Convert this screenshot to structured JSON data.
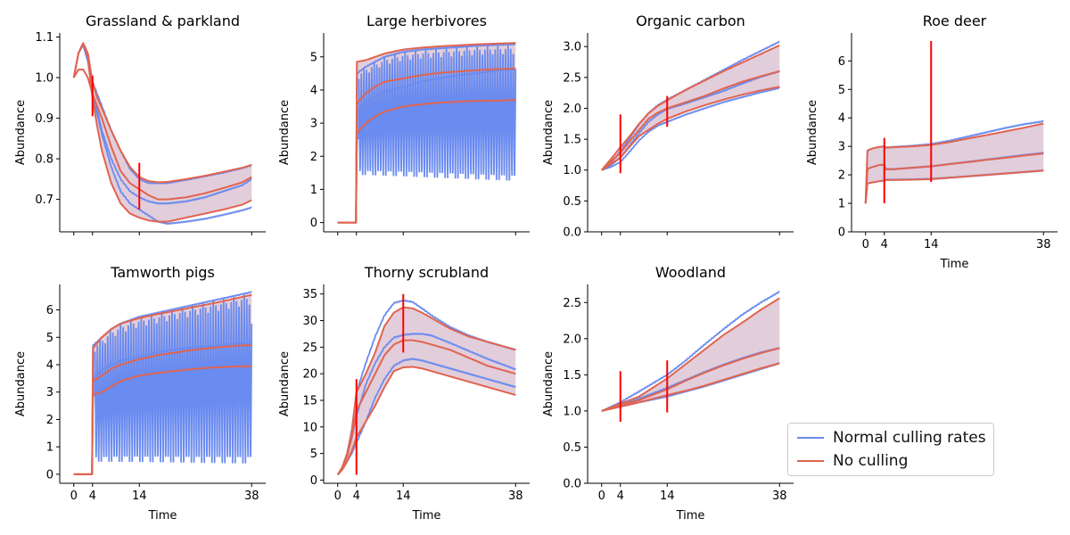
{
  "colors": {
    "normal": "#6a8bef",
    "noculling": "#e06450",
    "band": "#ddc4d3",
    "marker": "#ff0000"
  },
  "legend": {
    "normal_label": "Normal culling rates",
    "noculling_label": "No culling"
  },
  "chart_data": [
    {
      "type": "line",
      "title": "Grassland & parkland",
      "xlabel": "",
      "ylabel": "Abundance",
      "xlim": [
        -3,
        41
      ],
      "ylim": [
        0.62,
        1.11
      ],
      "yticks": [
        0.7,
        0.8,
        0.9,
        1.0,
        1.1
      ],
      "ytick_decimals": 1,
      "xticks": [
        0,
        4,
        14,
        38
      ],
      "show_xtick_labels": false,
      "markers": [
        {
          "x": 4,
          "y0": 0.905,
          "y1": 1.005
        },
        {
          "x": 14,
          "y0": 0.675,
          "y1": 0.79
        }
      ],
      "x": [
        0,
        1,
        2,
        3,
        4,
        5,
        6,
        8,
        10,
        12,
        14,
        16,
        18,
        20,
        24,
        28,
        32,
        36,
        38
      ],
      "no_culling": {
        "upper": [
          1.0,
          1.06,
          1.085,
          1.06,
          0.99,
          0.95,
          0.925,
          0.87,
          0.82,
          0.78,
          0.755,
          0.745,
          0.742,
          0.743,
          0.75,
          0.758,
          0.768,
          0.778,
          0.785
        ],
        "median": [
          1.0,
          1.02,
          1.02,
          1.0,
          0.96,
          0.93,
          0.9,
          0.83,
          0.77,
          0.74,
          0.725,
          0.71,
          0.7,
          0.7,
          0.705,
          0.715,
          0.728,
          0.742,
          0.755
        ],
        "lower": [
          1.0,
          1.06,
          1.085,
          1.05,
          0.95,
          0.88,
          0.82,
          0.74,
          0.69,
          0.665,
          0.655,
          0.648,
          0.645,
          0.645,
          0.655,
          0.665,
          0.675,
          0.687,
          0.698
        ]
      },
      "normal": {
        "upper": [
          1.0,
          1.06,
          1.085,
          1.06,
          0.99,
          0.96,
          0.93,
          0.87,
          0.82,
          0.775,
          0.75,
          0.74,
          0.74,
          0.74,
          0.748,
          0.757,
          0.766,
          0.777,
          0.784
        ],
        "median": [
          1.0,
          1.06,
          1.08,
          1.04,
          0.96,
          0.92,
          0.87,
          0.8,
          0.75,
          0.72,
          0.705,
          0.695,
          0.69,
          0.69,
          0.695,
          0.705,
          0.72,
          0.735,
          0.75
        ],
        "lower": [
          1.0,
          1.06,
          1.085,
          1.05,
          0.95,
          0.91,
          0.86,
          0.78,
          0.72,
          0.69,
          0.675,
          0.66,
          0.645,
          0.64,
          0.645,
          0.652,
          0.662,
          0.673,
          0.68
        ]
      }
    },
    {
      "type": "line",
      "title": "Large herbivores",
      "xlabel": "",
      "ylabel": "Abundance",
      "xlim": [
        -3,
        41
      ],
      "ylim": [
        -0.28,
        5.72
      ],
      "yticks": [
        0,
        1,
        2,
        3,
        4,
        5
      ],
      "ytick_decimals": 0,
      "xticks": [
        0,
        4,
        14,
        38
      ],
      "show_xtick_labels": false,
      "markers": [],
      "x": [
        0,
        3.9,
        4.1,
        6,
        8,
        10,
        14,
        18,
        22,
        26,
        30,
        34,
        38
      ],
      "no_culling": {
        "upper": [
          0,
          0,
          4.85,
          4.9,
          5.0,
          5.1,
          5.22,
          5.28,
          5.32,
          5.35,
          5.38,
          5.4,
          5.42
        ],
        "median": [
          0,
          0,
          3.6,
          3.9,
          4.1,
          4.25,
          4.35,
          4.45,
          4.52,
          4.56,
          4.6,
          4.63,
          4.65
        ],
        "lower": [
          0,
          0,
          2.7,
          3.0,
          3.2,
          3.35,
          3.5,
          3.57,
          3.62,
          3.65,
          3.67,
          3.68,
          3.7
        ]
      },
      "normal": {
        "upper": [
          0,
          0,
          4.5,
          4.7,
          4.85,
          5.0,
          5.15,
          5.22,
          5.26,
          5.3,
          5.34,
          5.36,
          5.38
        ],
        "median": [
          0,
          0,
          3.3,
          3.6,
          3.8,
          3.95,
          4.1,
          4.25,
          4.35,
          4.45,
          4.52,
          4.58,
          4.62
        ],
        "lower": [
          0,
          0,
          2.5,
          2.8,
          3.0,
          3.2,
          3.4,
          3.52,
          3.58,
          3.62,
          3.64,
          3.66,
          3.68
        ]
      },
      "normal_oscillation": {
        "x_start": 4.5,
        "x_end": 38,
        "period": 0.55,
        "low": 1.4,
        "low_end": 1.2
      }
    },
    {
      "type": "line",
      "title": "Organic carbon",
      "xlabel": "",
      "ylabel": "Abundance",
      "xlim": [
        -3,
        41
      ],
      "ylim": [
        0,
        3.22
      ],
      "yticks": [
        0,
        0.5,
        1.0,
        1.5,
        2.0,
        2.5,
        3.0
      ],
      "ytick_decimals": 1,
      "xticks": [
        0,
        4,
        14,
        38
      ],
      "show_xtick_labels": false,
      "markers": [
        {
          "x": 4,
          "y0": 0.95,
          "y1": 1.9
        },
        {
          "x": 14,
          "y0": 1.7,
          "y1": 2.2
        }
      ],
      "x": [
        0,
        2,
        4,
        6,
        8,
        10,
        12,
        14,
        18,
        22,
        26,
        30,
        34,
        38
      ],
      "no_culling": {
        "upper": [
          1.0,
          1.18,
          1.37,
          1.55,
          1.75,
          1.92,
          2.04,
          2.13,
          2.3,
          2.45,
          2.6,
          2.74,
          2.88,
          3.02
        ],
        "median": [
          1.0,
          1.14,
          1.28,
          1.47,
          1.65,
          1.83,
          1.93,
          2.0,
          2.1,
          2.2,
          2.32,
          2.43,
          2.52,
          2.6
        ],
        "lower": [
          1.0,
          1.1,
          1.2,
          1.38,
          1.55,
          1.65,
          1.75,
          1.83,
          1.95,
          2.05,
          2.14,
          2.22,
          2.29,
          2.35
        ]
      },
      "normal": {
        "upper": [
          1.0,
          1.12,
          1.3,
          1.52,
          1.74,
          1.92,
          2.05,
          2.14,
          2.3,
          2.46,
          2.62,
          2.78,
          2.93,
          3.08
        ],
        "median": [
          1.0,
          1.08,
          1.2,
          1.4,
          1.6,
          1.78,
          1.9,
          1.99,
          2.08,
          2.18,
          2.28,
          2.4,
          2.51,
          2.6
        ],
        "lower": [
          1.0,
          1.05,
          1.13,
          1.3,
          1.48,
          1.62,
          1.72,
          1.78,
          1.9,
          2.0,
          2.1,
          2.18,
          2.26,
          2.33
        ]
      }
    },
    {
      "type": "line",
      "title": "Roe deer",
      "xlabel": "Time",
      "ylabel": "Abundance",
      "xlim": [
        -3,
        41
      ],
      "ylim": [
        0,
        6.98
      ],
      "yticks": [
        0,
        1,
        2,
        3,
        4,
        5,
        6
      ],
      "ytick_decimals": 0,
      "xticks": [
        0,
        4,
        14,
        38
      ],
      "show_xtick_labels": true,
      "markers": [
        {
          "x": 4,
          "y0": 1.0,
          "y1": 3.3
        },
        {
          "x": 14,
          "y0": 1.75,
          "y1": 6.7
        }
      ],
      "x": [
        0,
        0.4,
        1,
        2,
        3,
        4,
        4.3,
        6,
        10,
        14,
        18,
        22,
        26,
        30,
        34,
        38
      ],
      "no_culling": {
        "upper": [
          1.0,
          2.85,
          2.9,
          2.95,
          2.98,
          3.0,
          2.95,
          2.97,
          3.0,
          3.05,
          3.15,
          3.28,
          3.4,
          3.53,
          3.66,
          3.8
        ],
        "median": [
          1.0,
          2.2,
          2.25,
          2.3,
          2.35,
          2.35,
          2.2,
          2.2,
          2.25,
          2.3,
          2.38,
          2.45,
          2.53,
          2.6,
          2.68,
          2.75
        ],
        "lower": [
          1.0,
          1.7,
          1.72,
          1.75,
          1.78,
          1.8,
          1.82,
          1.82,
          1.83,
          1.85,
          1.9,
          1.95,
          2.0,
          2.05,
          2.1,
          2.15
        ]
      },
      "normal": {
        "upper": [
          1.0,
          2.85,
          2.9,
          2.95,
          2.98,
          3.0,
          2.96,
          2.98,
          3.02,
          3.08,
          3.2,
          3.35,
          3.5,
          3.65,
          3.78,
          3.88
        ],
        "median": [
          1.0,
          2.2,
          2.25,
          2.3,
          2.35,
          2.35,
          2.2,
          2.2,
          2.25,
          2.3,
          2.38,
          2.46,
          2.54,
          2.62,
          2.7,
          2.77
        ],
        "lower": [
          1.0,
          1.7,
          1.72,
          1.75,
          1.78,
          1.8,
          1.83,
          1.83,
          1.84,
          1.86,
          1.9,
          1.95,
          2.0,
          2.05,
          2.1,
          2.15
        ]
      }
    },
    {
      "type": "line",
      "title": "Tamworth pigs",
      "xlabel": "Time",
      "ylabel": "Abundance",
      "xlim": [
        -3,
        41
      ],
      "ylim": [
        -0.33,
        6.93
      ],
      "yticks": [
        0,
        1,
        2,
        3,
        4,
        5,
        6
      ],
      "ytick_decimals": 0,
      "xticks": [
        0,
        4,
        14,
        38
      ],
      "show_xtick_labels": true,
      "markers": [],
      "x": [
        0,
        3.9,
        4.1,
        6,
        8,
        10,
        14,
        18,
        22,
        26,
        30,
        34,
        38
      ],
      "no_culling": {
        "upper": [
          0,
          0,
          4.6,
          5.0,
          5.3,
          5.5,
          5.7,
          5.85,
          5.98,
          6.12,
          6.25,
          6.4,
          6.55
        ],
        "median": [
          0,
          0,
          3.4,
          3.6,
          3.85,
          4.0,
          4.2,
          4.35,
          4.45,
          4.55,
          4.62,
          4.68,
          4.72
        ],
        "lower": [
          0,
          0,
          2.9,
          3.0,
          3.2,
          3.4,
          3.6,
          3.7,
          3.78,
          3.85,
          3.9,
          3.93,
          3.95
        ]
      },
      "normal": {
        "upper": [
          0,
          0,
          4.7,
          5.0,
          5.3,
          5.5,
          5.75,
          5.9,
          6.05,
          6.2,
          6.35,
          6.5,
          6.65
        ],
        "median": [
          0,
          0,
          3.5,
          3.8,
          4.0,
          4.15,
          4.3,
          4.45,
          4.55,
          4.65,
          4.7,
          4.75,
          4.8
        ],
        "lower": [
          0,
          0,
          2.85,
          3.0,
          3.2,
          3.35,
          3.55,
          3.65,
          3.75,
          3.82,
          3.88,
          3.92,
          3.95
        ]
      },
      "normal_oscillation": {
        "x_start": 4.5,
        "x_end": 38,
        "period": 0.55,
        "low": 0.4,
        "low_end": 0.3
      }
    },
    {
      "type": "line",
      "title": "Thorny scrubland",
      "xlabel": "Time",
      "ylabel": "Abundance",
      "xlim": [
        -3,
        41
      ],
      "ylim": [
        -0.6,
        36.8
      ],
      "yticks": [
        0,
        5,
        10,
        15,
        20,
        25,
        30,
        35
      ],
      "ytick_decimals": 0,
      "xticks": [
        0,
        4,
        14,
        38
      ],
      "show_xtick_labels": true,
      "markers": [
        {
          "x": 4,
          "y0": 1.0,
          "y1": 19.0
        },
        {
          "x": 14,
          "y0": 24.0,
          "y1": 35.0
        }
      ],
      "x": [
        0,
        1,
        2,
        3,
        4,
        6,
        8,
        10,
        12,
        14,
        16,
        18,
        20,
        24,
        28,
        32,
        36,
        38
      ],
      "no_culling": {
        "upper": [
          1,
          2.5,
          5,
          9,
          16.5,
          20,
          24,
          29,
          31.5,
          32.5,
          32.3,
          31.5,
          30.5,
          28.5,
          27,
          26,
          25,
          24.5
        ],
        "median": [
          1,
          2.3,
          4.5,
          8,
          13,
          16.5,
          20,
          23.5,
          25.5,
          26.3,
          26.3,
          26,
          25.5,
          24.5,
          23,
          21.5,
          20.5,
          20
        ],
        "lower": [
          1,
          2,
          3.5,
          5.5,
          8,
          11,
          14,
          17.5,
          20.5,
          21.2,
          21.3,
          21,
          20.5,
          19.5,
          18.5,
          17.5,
          16.5,
          16
        ]
      },
      "normal": {
        "upper": [
          1,
          2.5,
          5,
          9.5,
          16.5,
          22,
          27,
          31,
          33.3,
          33.8,
          33.5,
          32.3,
          31,
          28.8,
          27.2,
          26,
          25,
          24.5
        ],
        "median": [
          1,
          2.3,
          4.5,
          8,
          12,
          18,
          22,
          25,
          26.8,
          27.3,
          27.5,
          27.5,
          27.2,
          25.8,
          24.3,
          22.8,
          21.5,
          20.8
        ],
        "lower": [
          1,
          2,
          3.5,
          5,
          7,
          11,
          15.5,
          19,
          21.5,
          22.5,
          22.8,
          22.5,
          22,
          21,
          20,
          19,
          18,
          17.5
        ]
      }
    },
    {
      "type": "line",
      "title": "Woodland",
      "xlabel": "Time",
      "ylabel": "Abundance",
      "xlim": [
        -3,
        41
      ],
      "ylim": [
        0,
        2.75
      ],
      "yticks": [
        0,
        0.5,
        1.0,
        1.5,
        2.0,
        2.5
      ],
      "ytick_decimals": 1,
      "xticks": [
        0,
        4,
        14,
        38
      ],
      "show_xtick_labels": true,
      "markers": [
        {
          "x": 4,
          "y0": 0.85,
          "y1": 1.55
        },
        {
          "x": 14,
          "y0": 0.98,
          "y1": 1.7
        }
      ],
      "x": [
        0,
        4,
        8,
        14,
        18,
        22,
        26,
        30,
        34,
        38
      ],
      "no_culling": {
        "upper": [
          1.0,
          1.1,
          1.2,
          1.45,
          1.65,
          1.85,
          2.05,
          2.22,
          2.4,
          2.56
        ],
        "median": [
          1.0,
          1.08,
          1.15,
          1.3,
          1.42,
          1.53,
          1.63,
          1.72,
          1.8,
          1.87
        ],
        "lower": [
          1.0,
          1.06,
          1.12,
          1.22,
          1.28,
          1.35,
          1.43,
          1.51,
          1.59,
          1.66
        ]
      },
      "normal": {
        "upper": [
          1.0,
          1.12,
          1.27,
          1.5,
          1.7,
          1.92,
          2.13,
          2.33,
          2.5,
          2.65
        ],
        "median": [
          1.0,
          1.08,
          1.17,
          1.32,
          1.43,
          1.54,
          1.64,
          1.73,
          1.81,
          1.87
        ],
        "lower": [
          1.0,
          1.06,
          1.12,
          1.2,
          1.27,
          1.34,
          1.42,
          1.5,
          1.58,
          1.66
        ]
      }
    }
  ]
}
